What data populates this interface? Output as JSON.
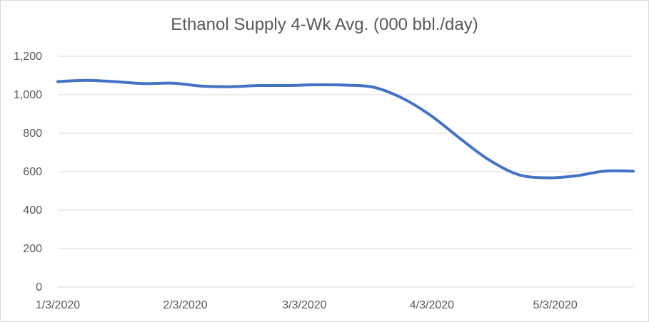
{
  "chart_data": {
    "type": "line",
    "title": "Ethanol Supply 4-Wk Avg. (000 bbl./day)",
    "xlabel": "",
    "ylabel": "",
    "ylim": [
      0,
      1200
    ],
    "yticks": [
      0,
      200,
      400,
      600,
      800,
      1000,
      1200
    ],
    "ytick_labels": [
      "0",
      "200",
      "400",
      "600",
      "800",
      "1,000",
      "1,200"
    ],
    "xlim": [
      "1/3/2020",
      "5/22/2020"
    ],
    "xtick_labels": [
      "1/3/2020",
      "2/3/2020",
      "3/3/2020",
      "4/3/2020",
      "5/3/2020"
    ],
    "grid": true,
    "legend": "none",
    "series": [
      {
        "color": "#4472C4",
        "x": [
          "1/3/2020",
          "1/10/2020",
          "1/17/2020",
          "1/24/2020",
          "1/31/2020",
          "2/7/2020",
          "2/14/2020",
          "2/21/2020",
          "2/28/2020",
          "3/6/2020",
          "3/13/2020",
          "3/20/2020",
          "3/27/2020",
          "4/3/2020",
          "4/10/2020",
          "4/17/2020",
          "4/24/2020",
          "5/1/2020",
          "5/8/2020",
          "5/15/2020",
          "5/22/2020"
        ],
        "values": [
          1068,
          1075,
          1068,
          1058,
          1060,
          1045,
          1042,
          1048,
          1048,
          1052,
          1050,
          1038,
          980,
          888,
          770,
          660,
          585,
          568,
          578,
          603,
          603
        ]
      }
    ]
  }
}
